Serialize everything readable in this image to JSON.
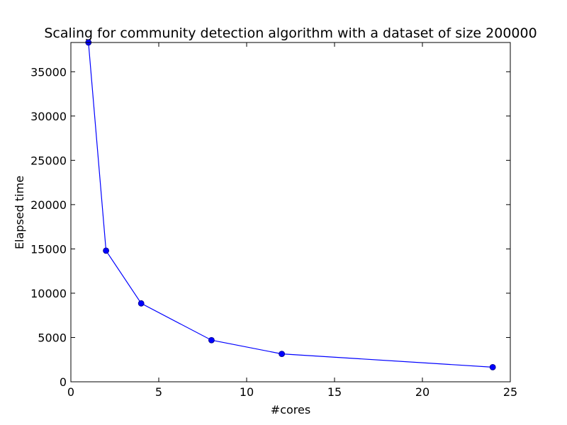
{
  "chart_data": {
    "type": "line",
    "title": "Scaling for community detection algorithm with a dataset of size 200000",
    "xlabel": "#cores",
    "ylabel": "Elapsed time",
    "x": [
      1,
      2,
      4,
      8,
      12,
      24
    ],
    "series": [
      {
        "values": [
          38300,
          14800,
          8850,
          4700,
          3150,
          1650
        ],
        "color": "#0000ff",
        "marker": "circle"
      }
    ],
    "xlim": [
      0,
      25
    ],
    "ylim": [
      0,
      38300
    ],
    "xticks": [
      "0",
      "5",
      "10",
      "15",
      "20",
      "25"
    ],
    "yticks": [
      "0",
      "5000",
      "10000",
      "15000",
      "20000",
      "25000",
      "30000",
      "35000"
    ],
    "grid": false,
    "legend": "none"
  }
}
